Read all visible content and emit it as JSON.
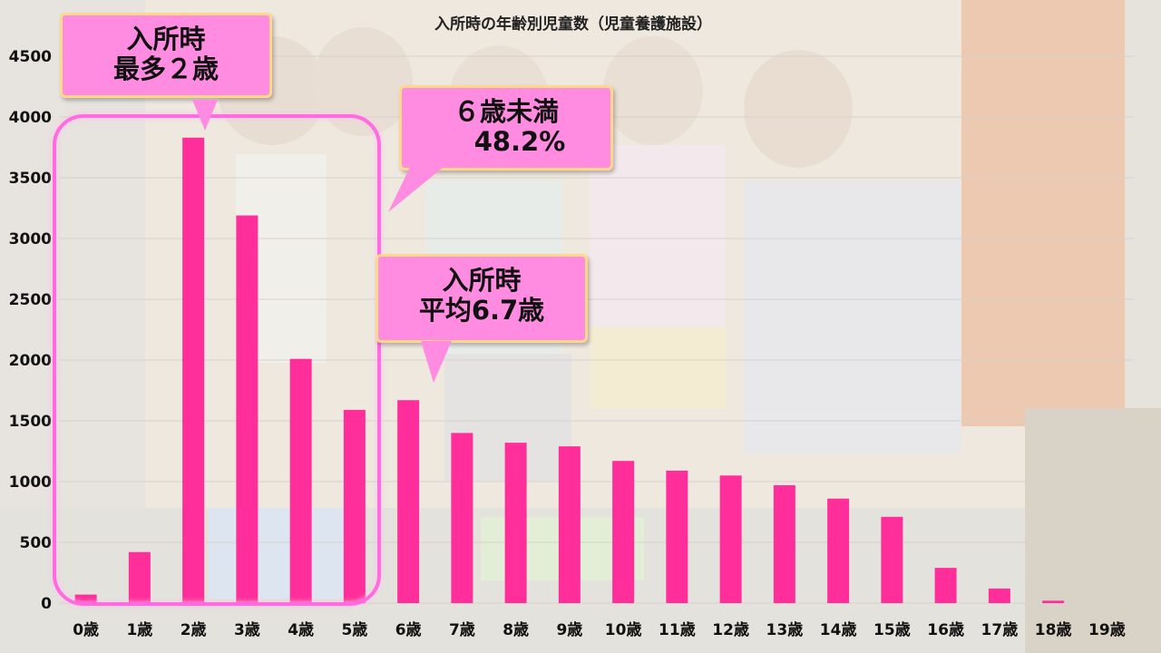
{
  "colors": {
    "bar": "#ff2e9a",
    "callout_fill": "#ff8ce0",
    "callout_border": "#ffd88c",
    "highlight": "#ff6ce0"
  },
  "callouts": {
    "max_age": {
      "line1": "入所時",
      "line2": "最多２歳"
    },
    "under6": {
      "line1": "６歳未満",
      "line2": "48.2%"
    },
    "average": {
      "line1": "入所時",
      "line2": "平均6.7歳"
    }
  },
  "chart_data": {
    "type": "bar",
    "title": "入所時の年齢別児童数（児童養護施設）",
    "categories": [
      "0歳",
      "1歳",
      "2歳",
      "3歳",
      "4歳",
      "5歳",
      "6歳",
      "7歳",
      "8歳",
      "9歳",
      "10歳",
      "11歳",
      "12歳",
      "13歳",
      "14歳",
      "15歳",
      "16歳",
      "17歳",
      "18歳",
      "19歳"
    ],
    "values": [
      70,
      420,
      3830,
      3190,
      2010,
      1590,
      1670,
      1400,
      1320,
      1290,
      1170,
      1090,
      1050,
      970,
      860,
      710,
      290,
      120,
      20,
      0
    ],
    "yticks": [
      0,
      500,
      1000,
      1500,
      2000,
      2500,
      3000,
      3500,
      4000,
      4500
    ],
    "ylim": [
      0,
      4500
    ],
    "grid": true
  }
}
